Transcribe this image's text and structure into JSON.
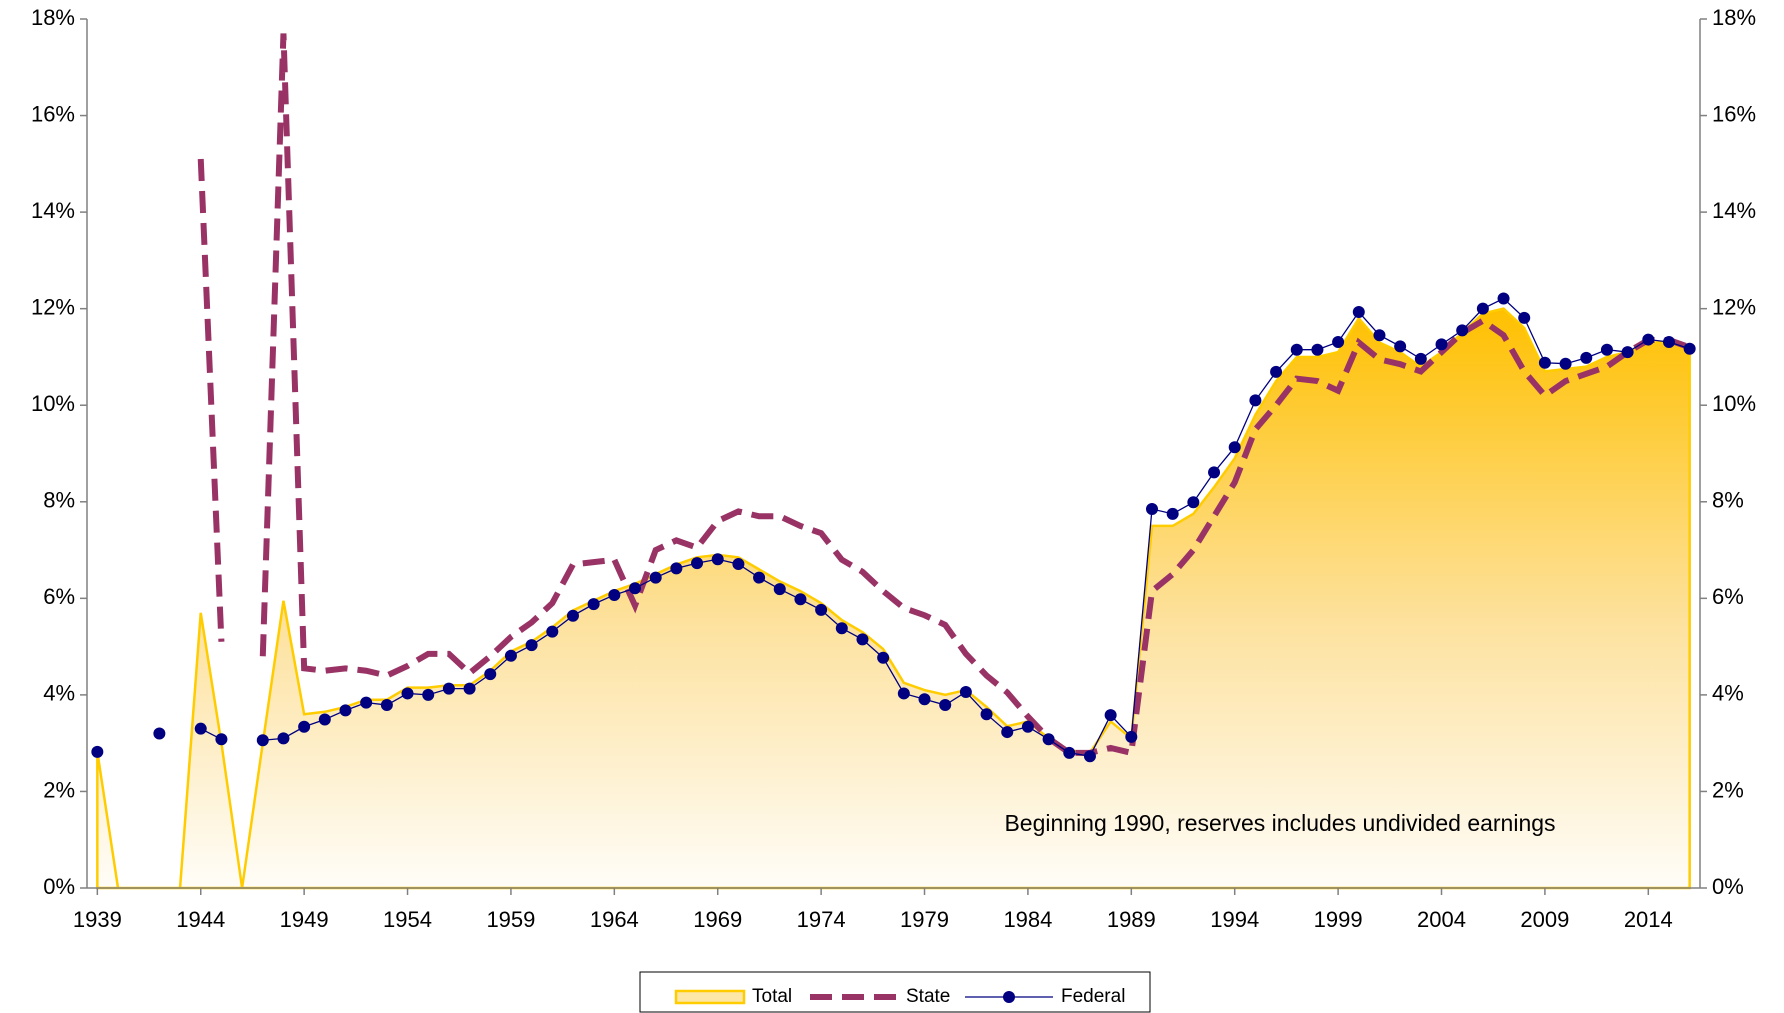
{
  "chart_data": {
    "type": "line",
    "annotation": "Beginning 1990, reserves includes undivided earnings",
    "x": [
      1939,
      1940,
      1941,
      1942,
      1943,
      1944,
      1945,
      1946,
      1947,
      1948,
      1949,
      1950,
      1951,
      1952,
      1953,
      1954,
      1955,
      1956,
      1957,
      1958,
      1959,
      1960,
      1961,
      1962,
      1963,
      1964,
      1965,
      1966,
      1967,
      1968,
      1969,
      1970,
      1971,
      1972,
      1973,
      1974,
      1975,
      1976,
      1977,
      1978,
      1979,
      1980,
      1981,
      1982,
      1983,
      1984,
      1985,
      1986,
      1987,
      1988,
      1989,
      1990,
      1991,
      1992,
      1993,
      1994,
      1995,
      1996,
      1997,
      1998,
      1999,
      2000,
      2001,
      2002,
      2003,
      2004,
      2005,
      2006,
      2007,
      2008,
      2009,
      2010,
      2011,
      2012,
      2013,
      2014,
      2015,
      2016
    ],
    "series": [
      {
        "name": "Total",
        "color": "#ffcc00",
        "kind": "area",
        "values": [
          2.82,
          0,
          0,
          0,
          0,
          5.7,
          3.0,
          0,
          3.0,
          5.95,
          3.6,
          3.65,
          3.75,
          3.9,
          3.9,
          4.15,
          4.15,
          4.2,
          4.2,
          4.5,
          4.9,
          5.1,
          5.4,
          5.75,
          5.95,
          6.15,
          6.3,
          6.5,
          6.7,
          6.85,
          6.9,
          6.85,
          6.6,
          6.35,
          6.15,
          5.9,
          5.55,
          5.3,
          4.95,
          4.25,
          4.1,
          4.0,
          4.1,
          3.75,
          3.35,
          3.45,
          3.1,
          2.85,
          2.8,
          3.45,
          3.1,
          7.5,
          7.5,
          7.75,
          8.3,
          8.9,
          9.8,
          10.5,
          11.0,
          11.0,
          11.1,
          11.8,
          11.3,
          11.1,
          10.8,
          11.1,
          11.5,
          11.9,
          12.0,
          11.6,
          10.7,
          10.75,
          10.8,
          11.0,
          11.1,
          11.3,
          11.3,
          11.2
        ]
      },
      {
        "name": "State",
        "color": "#993366",
        "kind": "dashed",
        "values": [
          null,
          null,
          null,
          null,
          null,
          15.1,
          5.1,
          null,
          4.8,
          17.7,
          4.55,
          4.5,
          4.55,
          4.5,
          4.4,
          4.6,
          4.85,
          4.85,
          4.45,
          4.8,
          5.2,
          5.5,
          5.9,
          6.7,
          6.75,
          6.8,
          5.85,
          7.0,
          7.2,
          7.05,
          7.6,
          7.8,
          7.7,
          7.7,
          7.5,
          7.35,
          6.8,
          6.55,
          6.15,
          5.8,
          5.65,
          5.45,
          4.85,
          4.4,
          4.05,
          3.55,
          3.1,
          2.8,
          2.8,
          2.9,
          2.8,
          6.15,
          6.5,
          7.0,
          7.7,
          8.4,
          9.5,
          10.0,
          10.55,
          10.5,
          10.3,
          11.3,
          10.95,
          10.85,
          10.7,
          11.1,
          11.5,
          11.75,
          11.45,
          10.7,
          10.2,
          10.5,
          10.65,
          10.8,
          11.1,
          11.35,
          11.35,
          11.2
        ]
      },
      {
        "name": "Federal",
        "color": "#000080",
        "kind": "markers",
        "values": [
          2.82,
          null,
          null,
          3.2,
          null,
          3.3,
          3.08,
          null,
          3.06,
          3.1,
          3.34,
          3.49,
          3.68,
          3.84,
          3.79,
          4.03,
          4.0,
          4.13,
          4.13,
          4.43,
          4.81,
          5.03,
          5.31,
          5.64,
          5.88,
          6.07,
          6.21,
          6.43,
          6.62,
          6.73,
          6.81,
          6.71,
          6.43,
          6.19,
          5.98,
          5.76,
          5.38,
          5.15,
          4.77,
          4.03,
          3.91,
          3.79,
          4.06,
          3.6,
          3.23,
          3.34,
          3.08,
          2.8,
          2.73,
          3.58,
          3.13,
          7.85,
          7.75,
          7.99,
          8.61,
          9.13,
          10.1,
          10.69,
          11.15,
          11.15,
          11.31,
          11.93,
          11.45,
          11.22,
          10.96,
          11.26,
          11.55,
          12.0,
          12.21,
          11.81,
          10.88,
          10.86,
          10.98,
          11.15,
          11.1,
          11.36,
          11.31,
          11.17
        ]
      }
    ],
    "xlim": [
      1938.5,
      2016.5
    ],
    "xticks": [
      1939,
      1944,
      1949,
      1954,
      1959,
      1964,
      1969,
      1974,
      1979,
      1984,
      1989,
      1994,
      1999,
      2004,
      2009,
      2014
    ],
    "ylim": [
      0,
      18
    ],
    "yticks": [
      {
        "value": 0,
        "label": "0%"
      },
      {
        "value": 2,
        "label": "2%"
      },
      {
        "value": 4,
        "label": "4%"
      },
      {
        "value": 6,
        "label": "6%"
      },
      {
        "value": 8,
        "label": "8%"
      },
      {
        "value": 10,
        "label": "10%"
      },
      {
        "value": 12,
        "label": "12%"
      },
      {
        "value": 14,
        "label": "14%"
      },
      {
        "value": 16,
        "label": "16%"
      },
      {
        "value": 18,
        "label": "18%"
      }
    ],
    "y2lim": [
      0,
      18
    ],
    "y2ticks": [
      {
        "value": 0,
        "label": "0%"
      },
      {
        "value": 2,
        "label": "2%"
      },
      {
        "value": 4,
        "label": "4%"
      },
      {
        "value": 6,
        "label": "6%"
      },
      {
        "value": 8,
        "label": "8%"
      },
      {
        "value": 10,
        "label": "10%"
      },
      {
        "value": 12,
        "label": "12%"
      },
      {
        "value": 14,
        "label": "14%"
      },
      {
        "value": 16,
        "label": "16%"
      },
      {
        "value": 18,
        "label": "18%"
      }
    ],
    "grid": false,
    "legend": "bottom"
  }
}
